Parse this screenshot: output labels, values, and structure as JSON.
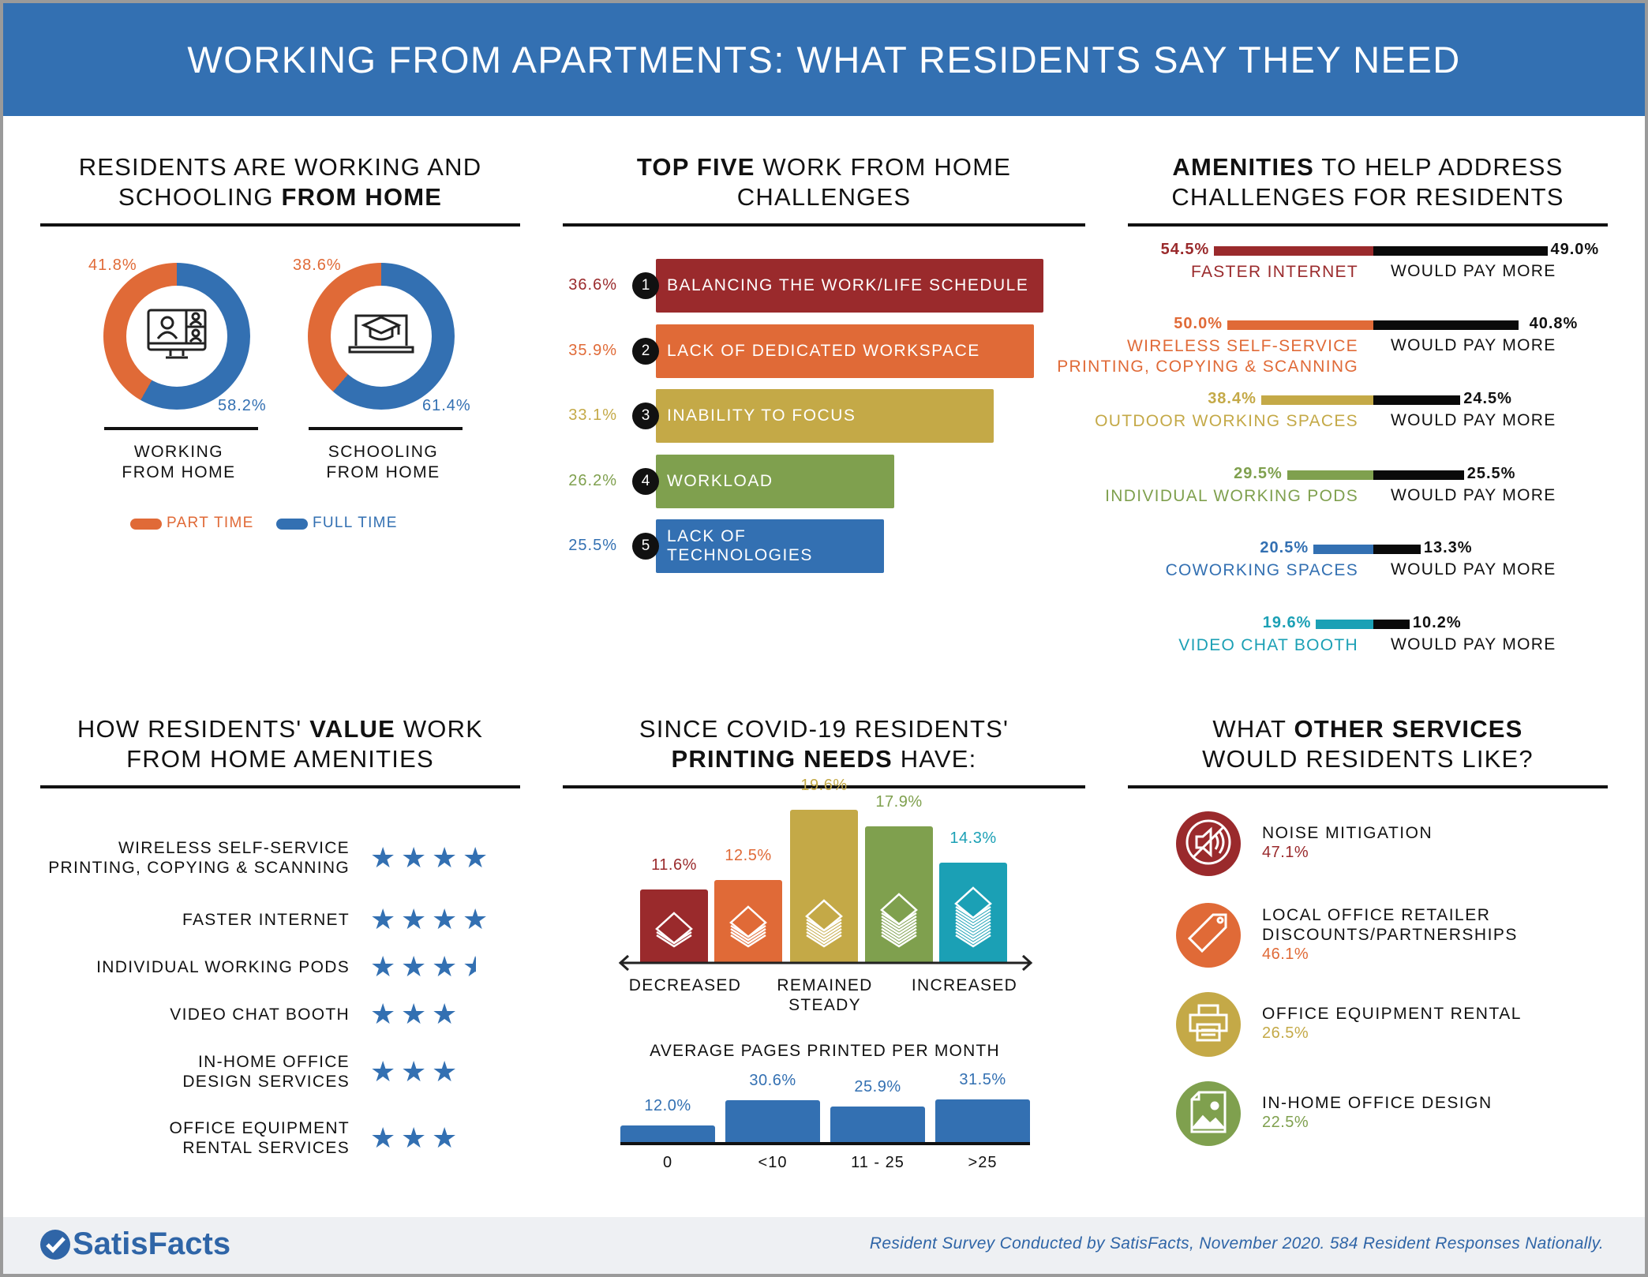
{
  "title": "WORKING FROM APARTMENTS: WHAT RESIDENTS SAY THEY NEED",
  "colors": {
    "blue": "#3370b2",
    "red": "#9a2a2c",
    "orange": "#e06a37",
    "gold": "#c4a947",
    "green": "#7fa04e",
    "teal": "#1ba0b5",
    "black": "#0a0a0a"
  },
  "sections": {
    "working": {
      "title_a": "RESIDENTS ARE WORKING AND",
      "title_b": "SCHOOLING ",
      "title_bold": "FROM HOME"
    },
    "challenges": {
      "title_bold": "TOP FIVE",
      "title_a": " WORK FROM HOME",
      "title_b": "CHALLENGES"
    },
    "amenities": {
      "title_bold": "AMENITIES",
      "title_a": " TO HELP ADDRESS",
      "title_b": "CHALLENGES FOR RESIDENTS"
    },
    "value": {
      "title_a": "HOW RESIDENTS' ",
      "title_bold": "VALUE",
      "title_c": " WORK",
      "title_b": "FROM HOME AMENITIES"
    },
    "printing": {
      "title_a": "SINCE COVID-19 RESIDENTS'",
      "title_bold": "PRINTING NEEDS",
      "title_b": " HAVE:"
    },
    "services": {
      "title_a": "WHAT ",
      "title_bold": "OTHER SERVICES",
      "title_c": "",
      "title_b": "WOULD RESIDENTS LIKE?"
    }
  },
  "chart_data": [
    {
      "type": "pie",
      "title": "Working / Schooling from home",
      "legend": [
        "PART TIME",
        "FULL TIME"
      ],
      "legend_position": "bottom",
      "donuts": [
        {
          "label_a": "WORKING",
          "label_b": "FROM HOME",
          "part_time": 41.8,
          "full_time": 58.2,
          "part_label": "41.8%",
          "full_label": "58.2%",
          "icon": "video-call-monitor-icon"
        },
        {
          "label_a": "SCHOOLING",
          "label_b": "FROM HOME",
          "part_time": 38.6,
          "full_time": 61.4,
          "part_label": "38.6%",
          "full_label": "61.4%",
          "icon": "graduation-laptop-icon"
        }
      ]
    },
    {
      "type": "bar",
      "title": "Top five work from home challenges",
      "items": [
        {
          "rank": "1",
          "label": "BALANCING THE WORK/LIFE SCHEDULE",
          "value": 36.6,
          "pct": "36.6%",
          "color": "#9a2a2c"
        },
        {
          "rank": "2",
          "label": "LACK OF DEDICATED WORKSPACE",
          "value": 35.9,
          "pct": "35.9%",
          "color": "#e06a37"
        },
        {
          "rank": "3",
          "label": "INABILITY TO FOCUS",
          "value": 33.1,
          "pct": "33.1%",
          "color": "#c4a947"
        },
        {
          "rank": "4",
          "label": "WORKLOAD",
          "value": 26.2,
          "pct": "26.2%",
          "color": "#7fa04e"
        },
        {
          "rank": "5",
          "label": "LACK OF TECHNOLOGIES",
          "value": 25.5,
          "pct": "25.5%",
          "color": "#3370b2"
        }
      ]
    },
    {
      "type": "bar",
      "title": "Amenities to help address challenges",
      "items": [
        {
          "label": "FASTER INTERNET",
          "label2": "",
          "want": 54.5,
          "want_pct": "54.5%",
          "pay": 49.0,
          "pay_pct": "49.0%",
          "pay_label": "WOULD PAY MORE",
          "color": "#9a2a2c"
        },
        {
          "label": "WIRELESS SELF-SERVICE",
          "label2": "PRINTING, COPYING & SCANNING",
          "want": 50.0,
          "want_pct": "50.0%",
          "pay": 40.8,
          "pay_pct": "40.8%",
          "pay_label": "WOULD PAY MORE",
          "color": "#e06a37"
        },
        {
          "label": "OUTDOOR WORKING SPACES",
          "label2": "",
          "want": 38.4,
          "want_pct": "38.4%",
          "pay": 24.5,
          "pay_pct": "24.5%",
          "pay_label": "WOULD PAY MORE",
          "color": "#c4a947"
        },
        {
          "label": "INDIVIDUAL WORKING PODS",
          "label2": "",
          "want": 29.5,
          "want_pct": "29.5%",
          "pay": 25.5,
          "pay_pct": "25.5%",
          "pay_label": "WOULD PAY MORE",
          "color": "#7fa04e"
        },
        {
          "label": "COWORKING SPACES",
          "label2": "",
          "want": 20.5,
          "want_pct": "20.5%",
          "pay": 13.3,
          "pay_pct": "13.3%",
          "pay_label": "WOULD PAY MORE",
          "color": "#3370b2"
        },
        {
          "label": "VIDEO CHAT BOOTH",
          "label2": "",
          "want": 19.6,
          "want_pct": "19.6%",
          "pay": 10.2,
          "pay_pct": "10.2%",
          "pay_label": "WOULD PAY MORE",
          "color": "#1ba0b5"
        }
      ]
    },
    {
      "type": "table",
      "title": "How residents value work from home amenities (stars)",
      "items": [
        {
          "label": "WIRELESS SELF-SERVICE",
          "label2": "PRINTING, COPYING & SCANNING",
          "stars": 4
        },
        {
          "label": "FASTER INTERNET",
          "label2": "",
          "stars": 4
        },
        {
          "label": "INDIVIDUAL WORKING PODS",
          "label2": "",
          "stars": 3.5
        },
        {
          "label": "VIDEO CHAT BOOTH",
          "label2": "",
          "stars": 3
        },
        {
          "label": "IN-HOME OFFICE",
          "label2": "DESIGN SERVICES",
          "stars": 3
        },
        {
          "label": "OFFICE EQUIPMENT",
          "label2": "RENTAL SERVICES",
          "stars": 3
        }
      ]
    },
    {
      "type": "bar",
      "title": "Printing needs since COVID-19",
      "values": [
        11.6,
        12.5,
        19.6,
        17.9,
        14.3
      ],
      "labels": [
        "11.6%",
        "12.5%",
        "19.6%",
        "17.9%",
        "14.3%"
      ],
      "colors": [
        "#9a2a2c",
        "#e06a37",
        "#c4a947",
        "#7fa04e",
        "#1ba0b5"
      ],
      "axis_labels": [
        {
          "a": "DECREASED",
          "b": ""
        },
        {
          "a": "REMAINED",
          "b": "STEADY"
        },
        {
          "a": "INCREASED",
          "b": ""
        }
      ]
    },
    {
      "type": "bar",
      "title": "AVERAGE PAGES PRINTED PER MONTH",
      "categories": [
        "0",
        "<10",
        "11 - 25",
        ">25"
      ],
      "values": [
        12.0,
        30.6,
        25.9,
        31.5
      ],
      "labels": [
        "12.0%",
        "30.6%",
        "25.9%",
        "31.5%"
      ]
    }
  ],
  "services": [
    {
      "label": "NOISE MITIGATION",
      "label2": "",
      "pct": "47.1%",
      "color": "#9a2a2c",
      "icon": "mute-speaker-icon"
    },
    {
      "label": "LOCAL OFFICE RETAILER",
      "label2": "DISCOUNTS/PARTNERSHIPS",
      "pct": "46.1%",
      "color": "#e06a37",
      "icon": "price-tag-icon"
    },
    {
      "label": "OFFICE EQUIPMENT RENTAL",
      "label2": "",
      "pct": "26.5%",
      "color": "#c4a947",
      "icon": "printer-icon"
    },
    {
      "label": "IN-HOME OFFICE DESIGN",
      "label2": "",
      "pct": "22.5%",
      "color": "#7fa04e",
      "icon": "image-file-icon"
    }
  ],
  "footer": {
    "brand": "SatisFacts",
    "note": "Resident Survey Conducted by SatisFacts, November 2020. 584 Resident Responses Nationally."
  }
}
